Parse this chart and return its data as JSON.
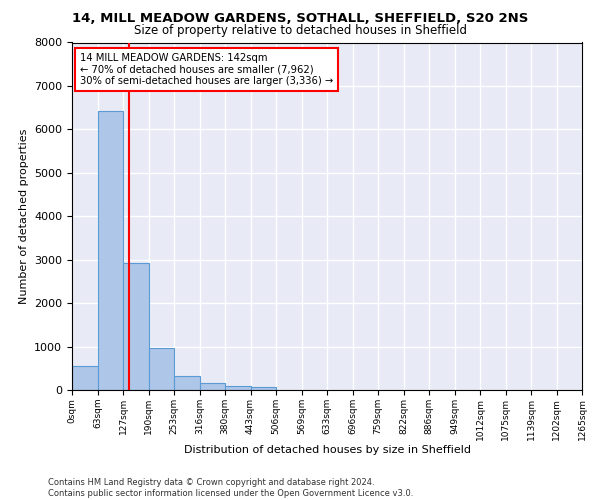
{
  "title_line1": "14, MILL MEADOW GARDENS, SOTHALL, SHEFFIELD, S20 2NS",
  "title_line2": "Size of property relative to detached houses in Sheffield",
  "xlabel": "Distribution of detached houses by size in Sheffield",
  "ylabel": "Number of detached properties",
  "bar_color": "#aec6e8",
  "bar_edge_color": "#5b9bd5",
  "background_color": "#e8eaf6",
  "grid_color": "#ffffff",
  "bins": [
    "0sqm",
    "63sqm",
    "127sqm",
    "190sqm",
    "253sqm",
    "316sqm",
    "380sqm",
    "443sqm",
    "506sqm",
    "569sqm",
    "633sqm",
    "696sqm",
    "759sqm",
    "822sqm",
    "886sqm",
    "949sqm",
    "1012sqm",
    "1075sqm",
    "1139sqm",
    "1202sqm",
    "1265sqm"
  ],
  "bar_heights": [
    550,
    6430,
    2930,
    960,
    330,
    150,
    100,
    65,
    0,
    0,
    0,
    0,
    0,
    0,
    0,
    0,
    0,
    0,
    0,
    0
  ],
  "property_size": 142,
  "bin_width": 63,
  "annotation_title": "14 MILL MEADOW GARDENS: 142sqm",
  "annotation_line1": "← 70% of detached houses are smaller (7,962)",
  "annotation_line2": "30% of semi-detached houses are larger (3,336) →",
  "vline_x": 142,
  "ylim": [
    0,
    8000
  ],
  "footnote1": "Contains HM Land Registry data © Crown copyright and database right 2024.",
  "footnote2": "Contains public sector information licensed under the Open Government Licence v3.0."
}
